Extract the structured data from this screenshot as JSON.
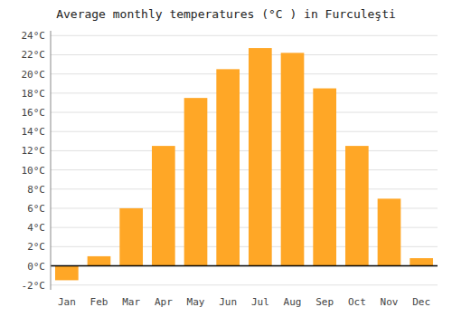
{
  "chart_data": {
    "type": "bar",
    "title": "Average monthly temperatures (°C ) in Furculeşti",
    "categories": [
      "Jan",
      "Feb",
      "Mar",
      "Apr",
      "May",
      "Jun",
      "Jul",
      "Aug",
      "Sep",
      "Oct",
      "Nov",
      "Dec"
    ],
    "values": [
      -1.5,
      1.0,
      6.0,
      12.5,
      17.5,
      20.5,
      22.7,
      22.2,
      18.5,
      12.5,
      7.0,
      0.8
    ],
    "color": "#FFA726",
    "ylim": [
      -2.5,
      24.5
    ],
    "yticks": [
      {
        "value": -2,
        "label": "-2°C"
      },
      {
        "value": 0,
        "label": "0°C"
      },
      {
        "value": 2,
        "label": "2°C"
      },
      {
        "value": 4,
        "label": "4°C"
      },
      {
        "value": 6,
        "label": "6°C"
      },
      {
        "value": 8,
        "label": "8°C"
      },
      {
        "value": 10,
        "label": "10°C"
      },
      {
        "value": 12,
        "label": "12°C"
      },
      {
        "value": 14,
        "label": "14°C"
      },
      {
        "value": 16,
        "label": "16°C"
      },
      {
        "value": 18,
        "label": "18°C"
      },
      {
        "value": 20,
        "label": "20°C"
      },
      {
        "value": 22,
        "label": "22°C"
      },
      {
        "value": 24,
        "label": "24°C"
      }
    ],
    "grid": true
  }
}
